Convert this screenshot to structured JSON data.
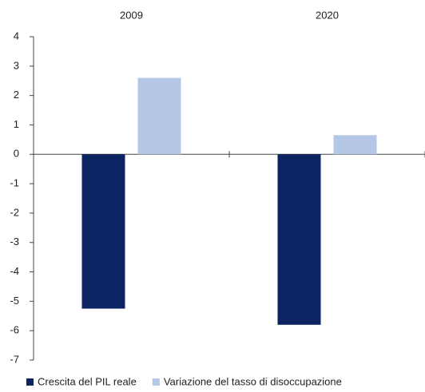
{
  "chart_data": {
    "type": "bar",
    "categories": [
      "2009",
      "2020"
    ],
    "series": [
      {
        "name": "Crescita del PIL reale",
        "color": "#0c2461",
        "values": [
          -5.25,
          -5.8
        ]
      },
      {
        "name": "Variazione del tasso di disoccupazione",
        "color": "#b4c7e7",
        "values": [
          2.6,
          0.65
        ]
      }
    ],
    "ylim": [
      -7,
      4
    ],
    "yticks": [
      -7,
      -6,
      -5,
      -4,
      -3,
      -2,
      -1,
      0,
      1,
      2,
      3,
      4
    ],
    "grid": false,
    "legend": "bottom"
  }
}
